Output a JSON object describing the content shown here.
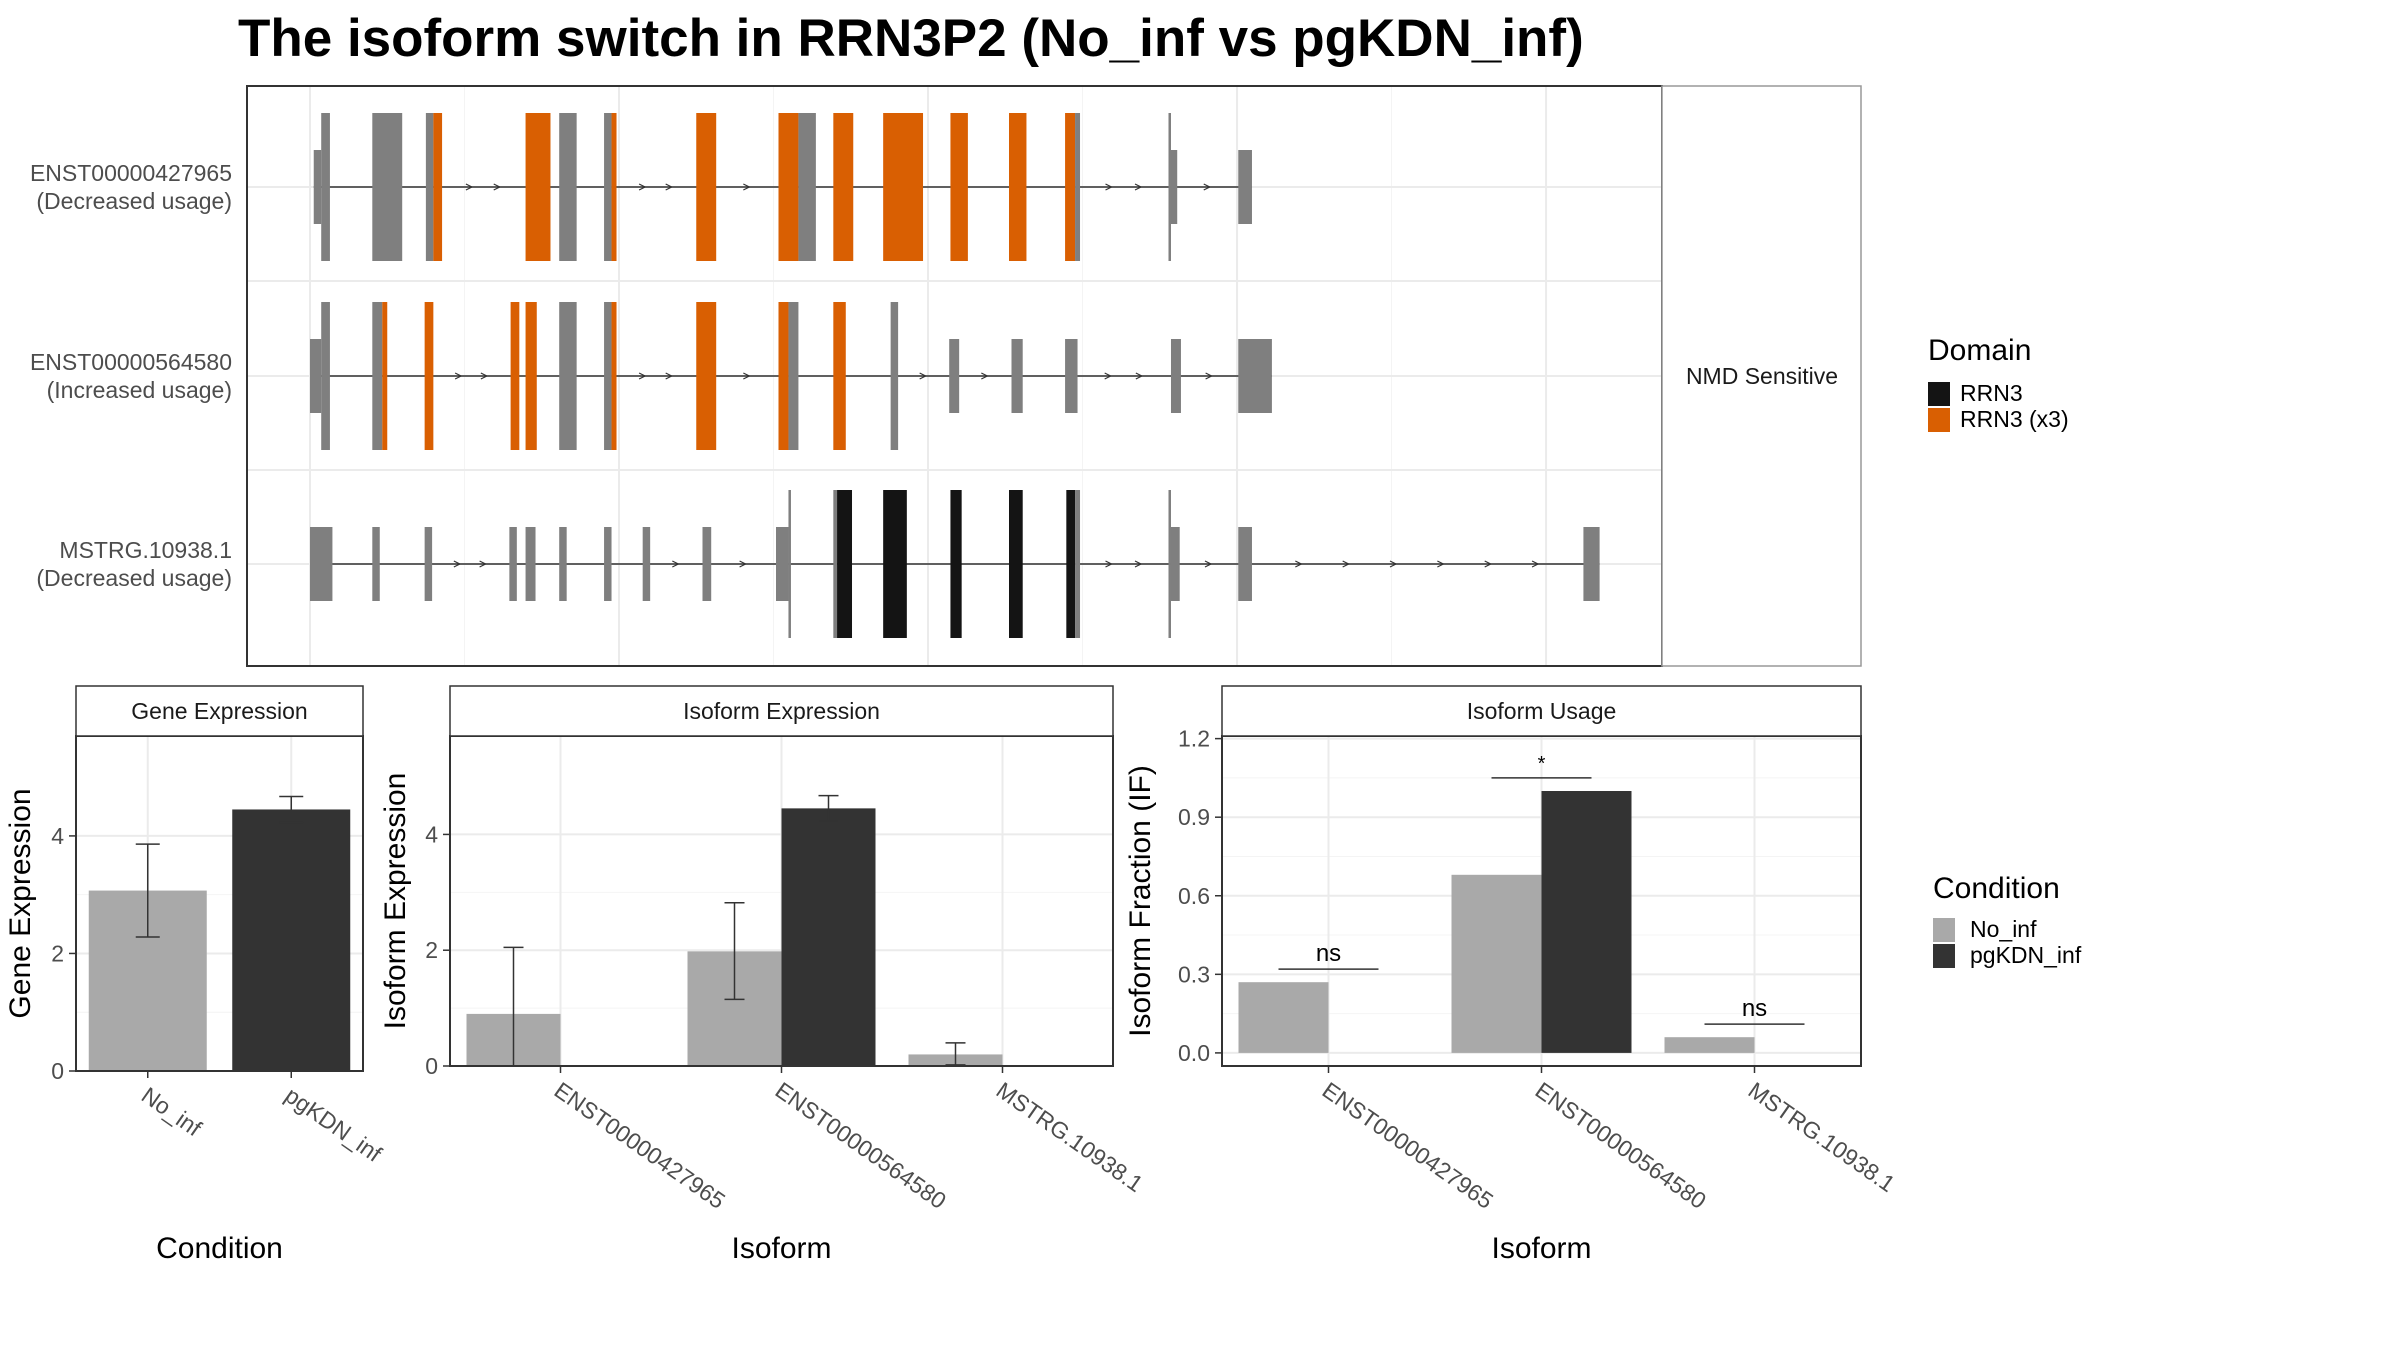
{
  "title": "The isoform switch in RRN3P2 (No_inf vs pgKDN_inf)",
  "colors": {
    "no_inf": "#a9a9a9",
    "pgkdn_inf": "#333333",
    "exon": "#7f7f7f",
    "rrn3": "#141414",
    "rrn3_x3": "#d95f02"
  },
  "legends": {
    "domain": {
      "title": "Domain",
      "items": [
        "RRN3",
        "RRN3 (x3)"
      ]
    },
    "condition": {
      "title": "Condition",
      "items": [
        "No_inf",
        "pgKDN_inf"
      ]
    }
  },
  "chart_data": [
    {
      "type": "gene-structure",
      "strip_label": "NMD Sensitive",
      "tracks": [
        {
          "id": "ENST00000427965",
          "usage": "(Decreased usage)",
          "exons": [
            {
              "s": 0.3,
              "e": 0.9,
              "k": "x",
              "h": "s"
            },
            {
              "s": 0.9,
              "e": 1.6,
              "k": "x",
              "h": "t"
            },
            {
              "s": 5.0,
              "e": 7.4,
              "k": "x",
              "h": "t"
            },
            {
              "s": 9.3,
              "e": 9.9,
              "k": "x",
              "h": "t"
            },
            {
              "s": 9.9,
              "e": 10.6,
              "k": "o",
              "h": "t"
            },
            {
              "s": 17.3,
              "e": 19.3,
              "k": "o",
              "h": "t"
            },
            {
              "s": 20.0,
              "e": 21.4,
              "k": "x",
              "h": "t"
            },
            {
              "s": 23.6,
              "e": 24.2,
              "k": "x",
              "h": "t"
            },
            {
              "s": 24.2,
              "e": 24.6,
              "k": "o",
              "h": "t"
            },
            {
              "s": 31.0,
              "e": 32.6,
              "k": "o",
              "h": "t"
            },
            {
              "s": 37.6,
              "e": 39.2,
              "k": "o",
              "h": "t"
            },
            {
              "s": 39.2,
              "e": 40.6,
              "k": "x",
              "h": "t"
            },
            {
              "s": 42.0,
              "e": 43.6,
              "k": "o",
              "h": "t"
            },
            {
              "s": 46.0,
              "e": 49.2,
              "k": "o",
              "h": "t"
            },
            {
              "s": 51.4,
              "e": 52.8,
              "k": "o",
              "h": "t"
            },
            {
              "s": 56.1,
              "e": 57.5,
              "k": "o",
              "h": "t"
            },
            {
              "s": 60.6,
              "e": 61.4,
              "k": "o",
              "h": "t"
            },
            {
              "s": 61.4,
              "e": 61.8,
              "k": "x",
              "h": "t"
            },
            {
              "s": 68.9,
              "e": 69.1,
              "k": "x",
              "h": "t"
            },
            {
              "s": 69.1,
              "e": 69.6,
              "k": "x",
              "h": "s"
            },
            {
              "s": 74.5,
              "e": 75.6,
              "k": "x",
              "h": "s"
            }
          ]
        },
        {
          "id": "ENST00000564580",
          "usage": "(Increased usage)",
          "exons": [
            {
              "s": 0.0,
              "e": 0.9,
              "k": "x",
              "h": "s"
            },
            {
              "s": 0.9,
              "e": 1.6,
              "k": "x",
              "h": "t"
            },
            {
              "s": 5.0,
              "e": 5.8,
              "k": "x",
              "h": "t"
            },
            {
              "s": 5.8,
              "e": 6.2,
              "k": "o",
              "h": "t"
            },
            {
              "s": 9.2,
              "e": 9.9,
              "k": "o",
              "h": "t"
            },
            {
              "s": 16.1,
              "e": 16.8,
              "k": "o",
              "h": "t"
            },
            {
              "s": 17.3,
              "e": 18.2,
              "k": "o",
              "h": "t"
            },
            {
              "s": 20.0,
              "e": 21.4,
              "k": "x",
              "h": "t"
            },
            {
              "s": 23.6,
              "e": 24.2,
              "k": "x",
              "h": "t"
            },
            {
              "s": 24.2,
              "e": 24.6,
              "k": "o",
              "h": "t"
            },
            {
              "s": 31.0,
              "e": 32.6,
              "k": "o",
              "h": "t"
            },
            {
              "s": 37.6,
              "e": 38.4,
              "k": "o",
              "h": "t"
            },
            {
              "s": 38.4,
              "e": 39.2,
              "k": "x",
              "h": "t"
            },
            {
              "s": 42.0,
              "e": 43.0,
              "k": "o",
              "h": "t"
            },
            {
              "s": 46.6,
              "e": 47.2,
              "k": "x",
              "h": "t"
            },
            {
              "s": 51.3,
              "e": 52.1,
              "k": "x",
              "h": "s"
            },
            {
              "s": 56.3,
              "e": 57.2,
              "k": "x",
              "h": "s"
            },
            {
              "s": 60.6,
              "e": 61.6,
              "k": "x",
              "h": "s"
            },
            {
              "s": 69.1,
              "e": 69.9,
              "k": "x",
              "h": "s"
            },
            {
              "s": 74.5,
              "e": 77.2,
              "k": "x",
              "h": "s"
            }
          ]
        },
        {
          "id": "MSTRG.10938.1",
          "usage": "(Decreased usage)",
          "exons": [
            {
              "s": 0.0,
              "e": 1.8,
              "k": "x",
              "h": "s"
            },
            {
              "s": 5.0,
              "e": 5.6,
              "k": "x",
              "h": "s"
            },
            {
              "s": 9.2,
              "e": 9.8,
              "k": "x",
              "h": "s"
            },
            {
              "s": 16.0,
              "e": 16.6,
              "k": "x",
              "h": "s"
            },
            {
              "s": 17.3,
              "e": 18.1,
              "k": "x",
              "h": "s"
            },
            {
              "s": 20.0,
              "e": 20.6,
              "k": "x",
              "h": "s"
            },
            {
              "s": 23.6,
              "e": 24.2,
              "k": "x",
              "h": "s"
            },
            {
              "s": 26.7,
              "e": 27.3,
              "k": "x",
              "h": "s"
            },
            {
              "s": 31.5,
              "e": 32.2,
              "k": "x",
              "h": "s"
            },
            {
              "s": 37.4,
              "e": 38.4,
              "k": "x",
              "h": "s"
            },
            {
              "s": 38.4,
              "e": 38.6,
              "k": "x",
              "h": "t"
            },
            {
              "s": 42.0,
              "e": 42.3,
              "k": "x",
              "h": "t"
            },
            {
              "s": 42.3,
              "e": 43.5,
              "k": "r",
              "h": "t"
            },
            {
              "s": 46.0,
              "e": 47.9,
              "k": "r",
              "h": "t"
            },
            {
              "s": 51.4,
              "e": 52.3,
              "k": "r",
              "h": "t"
            },
            {
              "s": 56.1,
              "e": 57.2,
              "k": "r",
              "h": "t"
            },
            {
              "s": 60.7,
              "e": 61.4,
              "k": "r",
              "h": "t"
            },
            {
              "s": 61.4,
              "e": 61.8,
              "k": "x",
              "h": "t"
            },
            {
              "s": 68.9,
              "e": 69.1,
              "k": "x",
              "h": "t"
            },
            {
              "s": 69.1,
              "e": 69.8,
              "k": "x",
              "h": "s"
            },
            {
              "s": 74.5,
              "e": 75.6,
              "k": "x",
              "h": "s"
            },
            {
              "s": 102.2,
              "e": 103.5,
              "k": "x",
              "h": "s"
            }
          ]
        }
      ]
    },
    {
      "type": "bar",
      "title": "Gene Expression",
      "xlabel": "Condition",
      "ylabel": "Gene Expression",
      "categories": [
        "No_inf",
        "pgKDN_inf"
      ],
      "values": [
        3.07,
        4.45
      ],
      "error_low": [
        2.28,
        4.23
      ],
      "error_high": [
        3.86,
        4.67
      ],
      "yticks": [
        0,
        2,
        4
      ],
      "ylim": [
        0,
        5.7
      ]
    },
    {
      "type": "bar",
      "title": "Isoform Expression",
      "xlabel": "Isoform",
      "ylabel": "Isoform Expression",
      "categories": [
        "ENST00000427965",
        "ENST00000564580",
        "MSTRG.10938.1"
      ],
      "series": [
        {
          "name": "No_inf",
          "values": [
            0.9,
            1.98,
            0.2
          ],
          "error_low": [
            0.0,
            1.15,
            0.02
          ],
          "error_high": [
            2.05,
            2.82,
            0.4
          ]
        },
        {
          "name": "pgKDN_inf",
          "values": [
            0.0,
            4.45,
            0.0
          ],
          "error_low": [
            0.0,
            4.23,
            0.0
          ],
          "error_high": [
            0.0,
            4.67,
            0.0
          ]
        }
      ],
      "yticks": [
        0,
        2,
        4
      ],
      "ylim": [
        0,
        5.7
      ]
    },
    {
      "type": "bar",
      "title": "Isoform Usage",
      "xlabel": "Isoform",
      "ylabel": "Isoform Fraction (IF)",
      "categories": [
        "ENST00000427965",
        "ENST00000564580",
        "MSTRG.10938.1"
      ],
      "series": [
        {
          "name": "No_inf",
          "values": [
            0.27,
            0.68,
            0.06
          ]
        },
        {
          "name": "pgKDN_inf",
          "values": [
            0.0,
            1.0,
            0.0
          ]
        }
      ],
      "significance": [
        "ns",
        "*",
        "ns"
      ],
      "significance_y": [
        0.32,
        1.05,
        0.11
      ],
      "yticks": [
        0.0,
        0.3,
        0.6,
        0.9,
        1.2
      ],
      "ytick_labels": [
        "0.0",
        "0.3",
        "0.6",
        "0.9",
        "1.2"
      ],
      "ylim": [
        -0.05,
        1.21
      ]
    }
  ]
}
